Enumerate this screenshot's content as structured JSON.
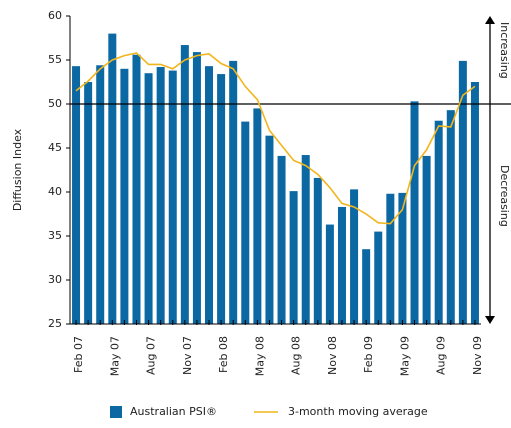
{
  "chart_data": {
    "type": "bar",
    "y_label": "Diffusion Index",
    "categories": [
      "Feb 07",
      null,
      null,
      "May 07",
      null,
      null,
      "Aug 07",
      null,
      null,
      "Nov 07",
      null,
      null,
      "Feb 08",
      null,
      null,
      "May 08",
      null,
      null,
      "Aug 08",
      null,
      null,
      "Nov 08",
      null,
      null,
      "Feb 09",
      null,
      null,
      "May 09",
      null,
      null,
      "Aug 09",
      null,
      null,
      "Nov 09"
    ],
    "series": [
      {
        "name": "Australian PSI®",
        "type": "bar",
        "color": "#0b68a3",
        "values": [
          54.3,
          52.5,
          54.4,
          58.0,
          54.0,
          55.6,
          53.5,
          54.2,
          53.8,
          56.7,
          55.9,
          54.3,
          53.4,
          54.9,
          48.0,
          49.5,
          46.4,
          44.1,
          40.1,
          44.2,
          41.6,
          36.3,
          38.3,
          40.3,
          33.5,
          35.5,
          39.8,
          39.9,
          50.3,
          44.1,
          48.1,
          49.3,
          54.9,
          52.5
        ]
      },
      {
        "name": "3-month moving average",
        "type": "line",
        "color": "#f2b51c",
        "values": [
          51.5,
          52.6,
          54.0,
          55.0,
          55.5,
          55.8,
          54.5,
          54.5,
          54.0,
          55.0,
          55.5,
          55.7,
          54.6,
          54.0,
          52.0,
          50.5,
          47.0,
          45.3,
          43.6,
          43.0,
          42.0,
          40.5,
          38.7,
          38.3,
          37.5,
          36.5,
          36.4,
          38.0,
          43.0,
          44.8,
          47.5,
          47.4,
          51.0,
          52.0
        ]
      }
    ],
    "ylim": [
      25,
      60
    ],
    "yticks": [
      25,
      30,
      35,
      40,
      45,
      50,
      55,
      60
    ],
    "reference_line": 50,
    "increasing_label": "Increasing",
    "decreasing_label": "Decreasing"
  }
}
